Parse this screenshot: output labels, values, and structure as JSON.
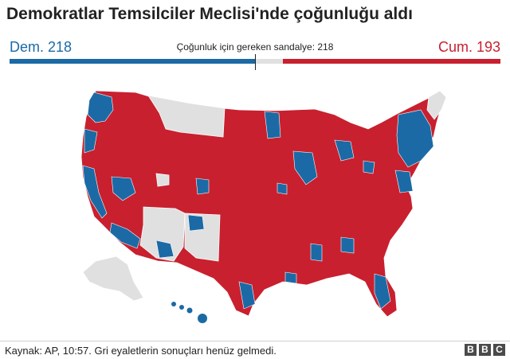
{
  "title": "Demokratlar Temsilciler Meclisi'nde çoğunluğu aldı",
  "seats": {
    "dem_label": "Dem. 218",
    "rep_label": "Cum. 193",
    "majority_label": "Çoğunluk için gereken sandalye: 218",
    "dem": 218,
    "rep": 193,
    "total": 435,
    "majority": 218
  },
  "colors": {
    "dem": "#1b6aa5",
    "rep": "#c8202f",
    "undecided": "#e0e0e0"
  },
  "map": {
    "description_key": "us-house-districts",
    "legend": {
      "dem": "Dem.",
      "rep": "Cum.",
      "undecided": "Gri"
    }
  },
  "footer": {
    "source": "Kaynak: AP, 10:57. Gri eyaletlerin sonuçları henüz gelmedi.",
    "logo_letters": [
      "B",
      "B",
      "C"
    ]
  }
}
